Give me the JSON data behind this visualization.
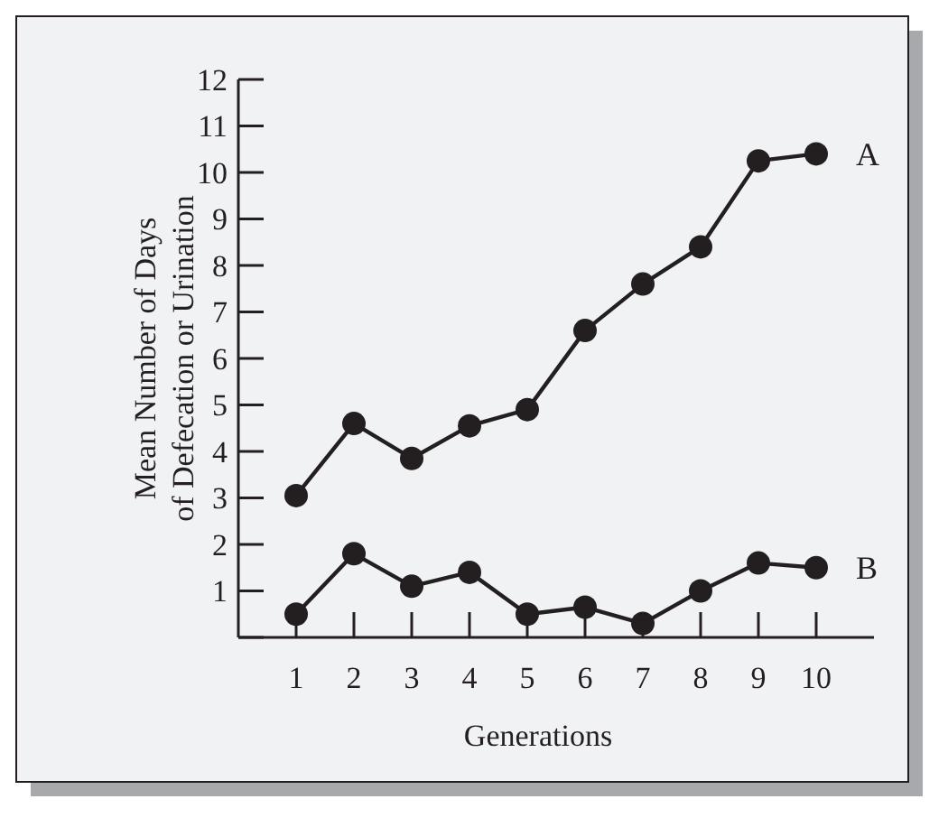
{
  "chart_data": {
    "type": "line",
    "xlabel": "Generations",
    "ylabel": "Mean Number of Days\nof Defecation or Urination",
    "x": [
      1,
      2,
      3,
      4,
      5,
      6,
      7,
      8,
      9,
      10
    ],
    "xlim": [
      0,
      11
    ],
    "xticks": [
      1,
      2,
      3,
      4,
      5,
      6,
      7,
      8,
      9,
      10
    ],
    "ylim": [
      0,
      12
    ],
    "yticks": [
      {
        "value": 0,
        "label": null
      },
      1,
      2,
      3,
      4,
      5,
      6,
      7,
      8,
      9,
      10,
      11,
      12
    ],
    "marker": "circle",
    "series": [
      {
        "name": "A",
        "color": "#231f20",
        "values": [
          3.05,
          4.6,
          3.85,
          4.55,
          4.9,
          6.6,
          7.6,
          8.4,
          10.25,
          10.4
        ]
      },
      {
        "name": "B",
        "color": "#231f20",
        "values": [
          0.5,
          1.8,
          1.1,
          1.4,
          0.5,
          0.65,
          0.3,
          1.0,
          1.6,
          1.5
        ]
      }
    ]
  }
}
